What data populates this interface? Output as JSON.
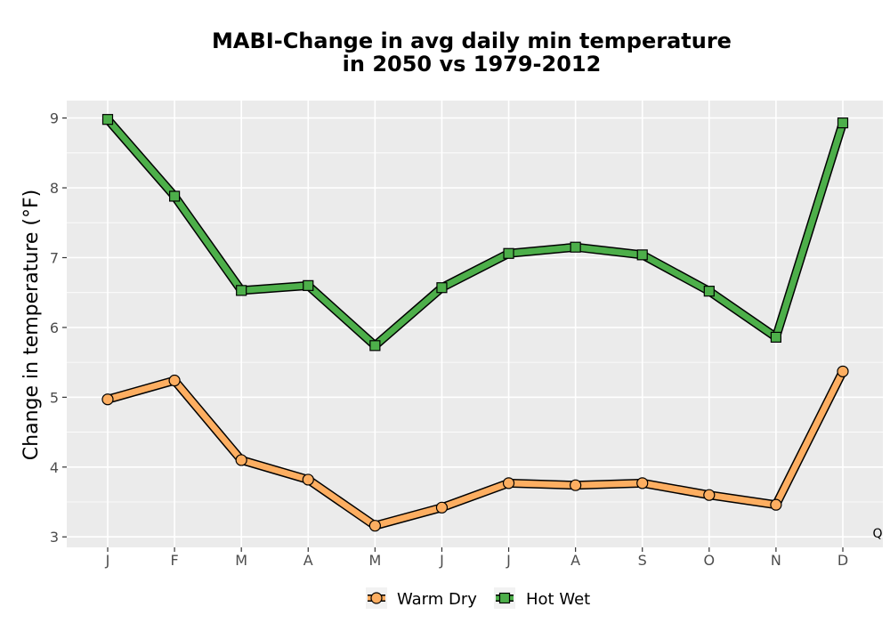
{
  "chart_data": {
    "type": "line",
    "title_lines": [
      "MABI-Change in avg daily min temperature",
      "in 2050 vs 1979-2012"
    ],
    "xlabel": "",
    "ylabel": "Change in temperature (°F)",
    "categories": [
      "J",
      "F",
      "M",
      "A",
      "M",
      "J",
      "J",
      "A",
      "S",
      "O",
      "N",
      "D"
    ],
    "y_ticks": [
      3,
      4,
      5,
      6,
      7,
      8,
      9
    ],
    "ylim": [
      2.85,
      9.25
    ],
    "grid": true,
    "legend_position": "bottom",
    "corner_note": "Q",
    "series": [
      {
        "name": "Warm Dry",
        "marker": "circle",
        "color": "#fdae61",
        "values": [
          4.97,
          5.24,
          4.1,
          3.82,
          3.16,
          3.42,
          3.77,
          3.74,
          3.77,
          3.6,
          3.46,
          5.37
        ]
      },
      {
        "name": "Hot Wet",
        "marker": "square",
        "color": "#4daf4a",
        "values": [
          8.98,
          7.88,
          6.53,
          6.6,
          5.74,
          6.57,
          7.06,
          7.15,
          7.04,
          6.52,
          5.86,
          8.93
        ]
      }
    ]
  },
  "colors": {
    "panel_background": "#ebebeb",
    "grid": "#ffffff",
    "outline": "#000000"
  }
}
